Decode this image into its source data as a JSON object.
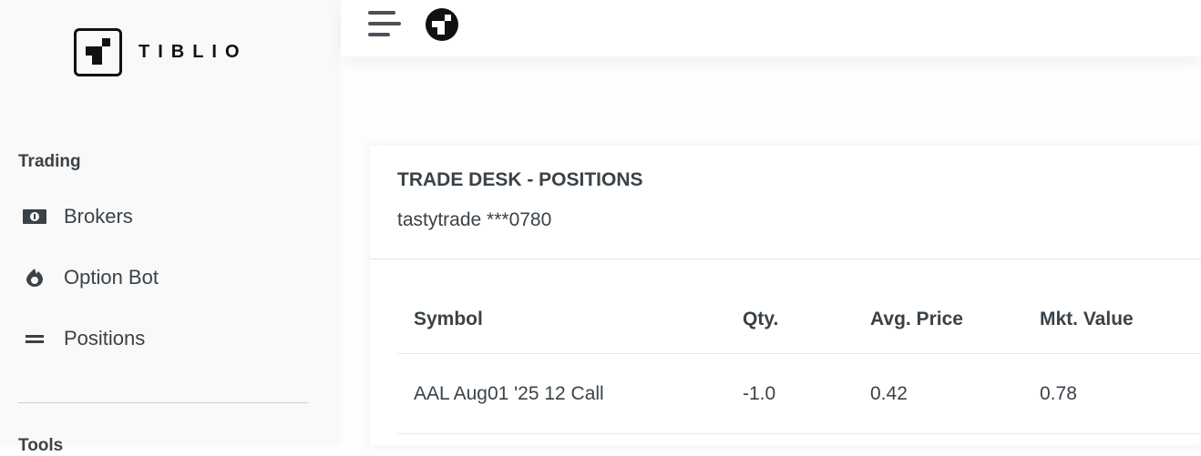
{
  "brand": {
    "name": "TIBLIO"
  },
  "sidebar": {
    "sections": [
      {
        "label": "Trading"
      },
      {
        "label": "Tools"
      }
    ],
    "items": [
      {
        "label": "Brokers",
        "icon": "money-bill-icon"
      },
      {
        "label": "Option Bot",
        "icon": "fire-icon"
      },
      {
        "label": "Positions",
        "icon": "equals-icon"
      }
    ]
  },
  "topbar": {
    "menu_icon": "hamburger-menu-icon",
    "avatar_icon": "tiblio-logo-icon"
  },
  "card": {
    "title": "TRADE DESK - POSITIONS",
    "account": "tastytrade ***0780",
    "table": {
      "headers": [
        "Symbol",
        "Qty.",
        "Avg. Price",
        "Mkt. Value"
      ],
      "rows": [
        [
          "AAL Aug01 '25 12 Call",
          "-1.0",
          "0.42",
          "0.78"
        ]
      ]
    }
  }
}
